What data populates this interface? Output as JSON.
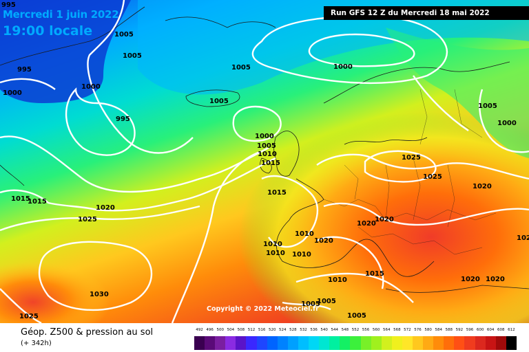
{
  "header": {
    "date": "Mercredi 1 juin 2022",
    "time": "19:00 locale",
    "run": "Run GFS 12 Z du Mercredi 18 mai 2022"
  },
  "copyright": "Copyright © 2022 Meteociel.fr",
  "footer": {
    "title": "Géop. Z500 & pression au sol",
    "subtitle": "(+ 342h)"
  },
  "isobar_labels": [
    "995",
    "1005",
    "1005",
    "995",
    "1000",
    "1000",
    "1005",
    "995",
    "1000",
    "1005",
    "1000",
    "1005",
    "1010",
    "1015",
    "1005",
    "1000",
    "1015",
    "1015",
    "1020",
    "1025",
    "1030",
    "1025",
    "1015",
    "1025",
    "1025",
    "1020",
    "1020",
    "1020",
    "1010",
    "1010",
    "1010",
    "1010",
    "1020",
    "1010",
    "1015",
    "1005",
    "1005",
    "1005",
    "1020",
    "1020",
    "102"
  ],
  "legend": {
    "values": [
      "492",
      "496",
      "500",
      "504",
      "508",
      "512",
      "516",
      "520",
      "524",
      "528",
      "532",
      "536",
      "540",
      "544",
      "548",
      "552",
      "556",
      "560",
      "564",
      "568",
      "572",
      "576",
      "580",
      "584",
      "588",
      "592",
      "596",
      "600",
      "604",
      "608",
      "612"
    ],
    "colors": [
      "#3a0050",
      "#5a0a78",
      "#7a1ea0",
      "#8a2be2",
      "#5a14c8",
      "#3a28ff",
      "#1e46ff",
      "#0064ff",
      "#0082ff",
      "#00a0ff",
      "#00beff",
      "#00d7f5",
      "#00e6d2",
      "#00f0a0",
      "#14f064",
      "#3cf03c",
      "#78f028",
      "#a0f01e",
      "#d2f01e",
      "#f0f01e",
      "#ffe628",
      "#ffc81e",
      "#ffaa14",
      "#ff8c0a",
      "#ff6e0a",
      "#ff5014",
      "#f03c1e",
      "#dc281e",
      "#c81414",
      "#a00a0a",
      "#000000"
    ]
  }
}
